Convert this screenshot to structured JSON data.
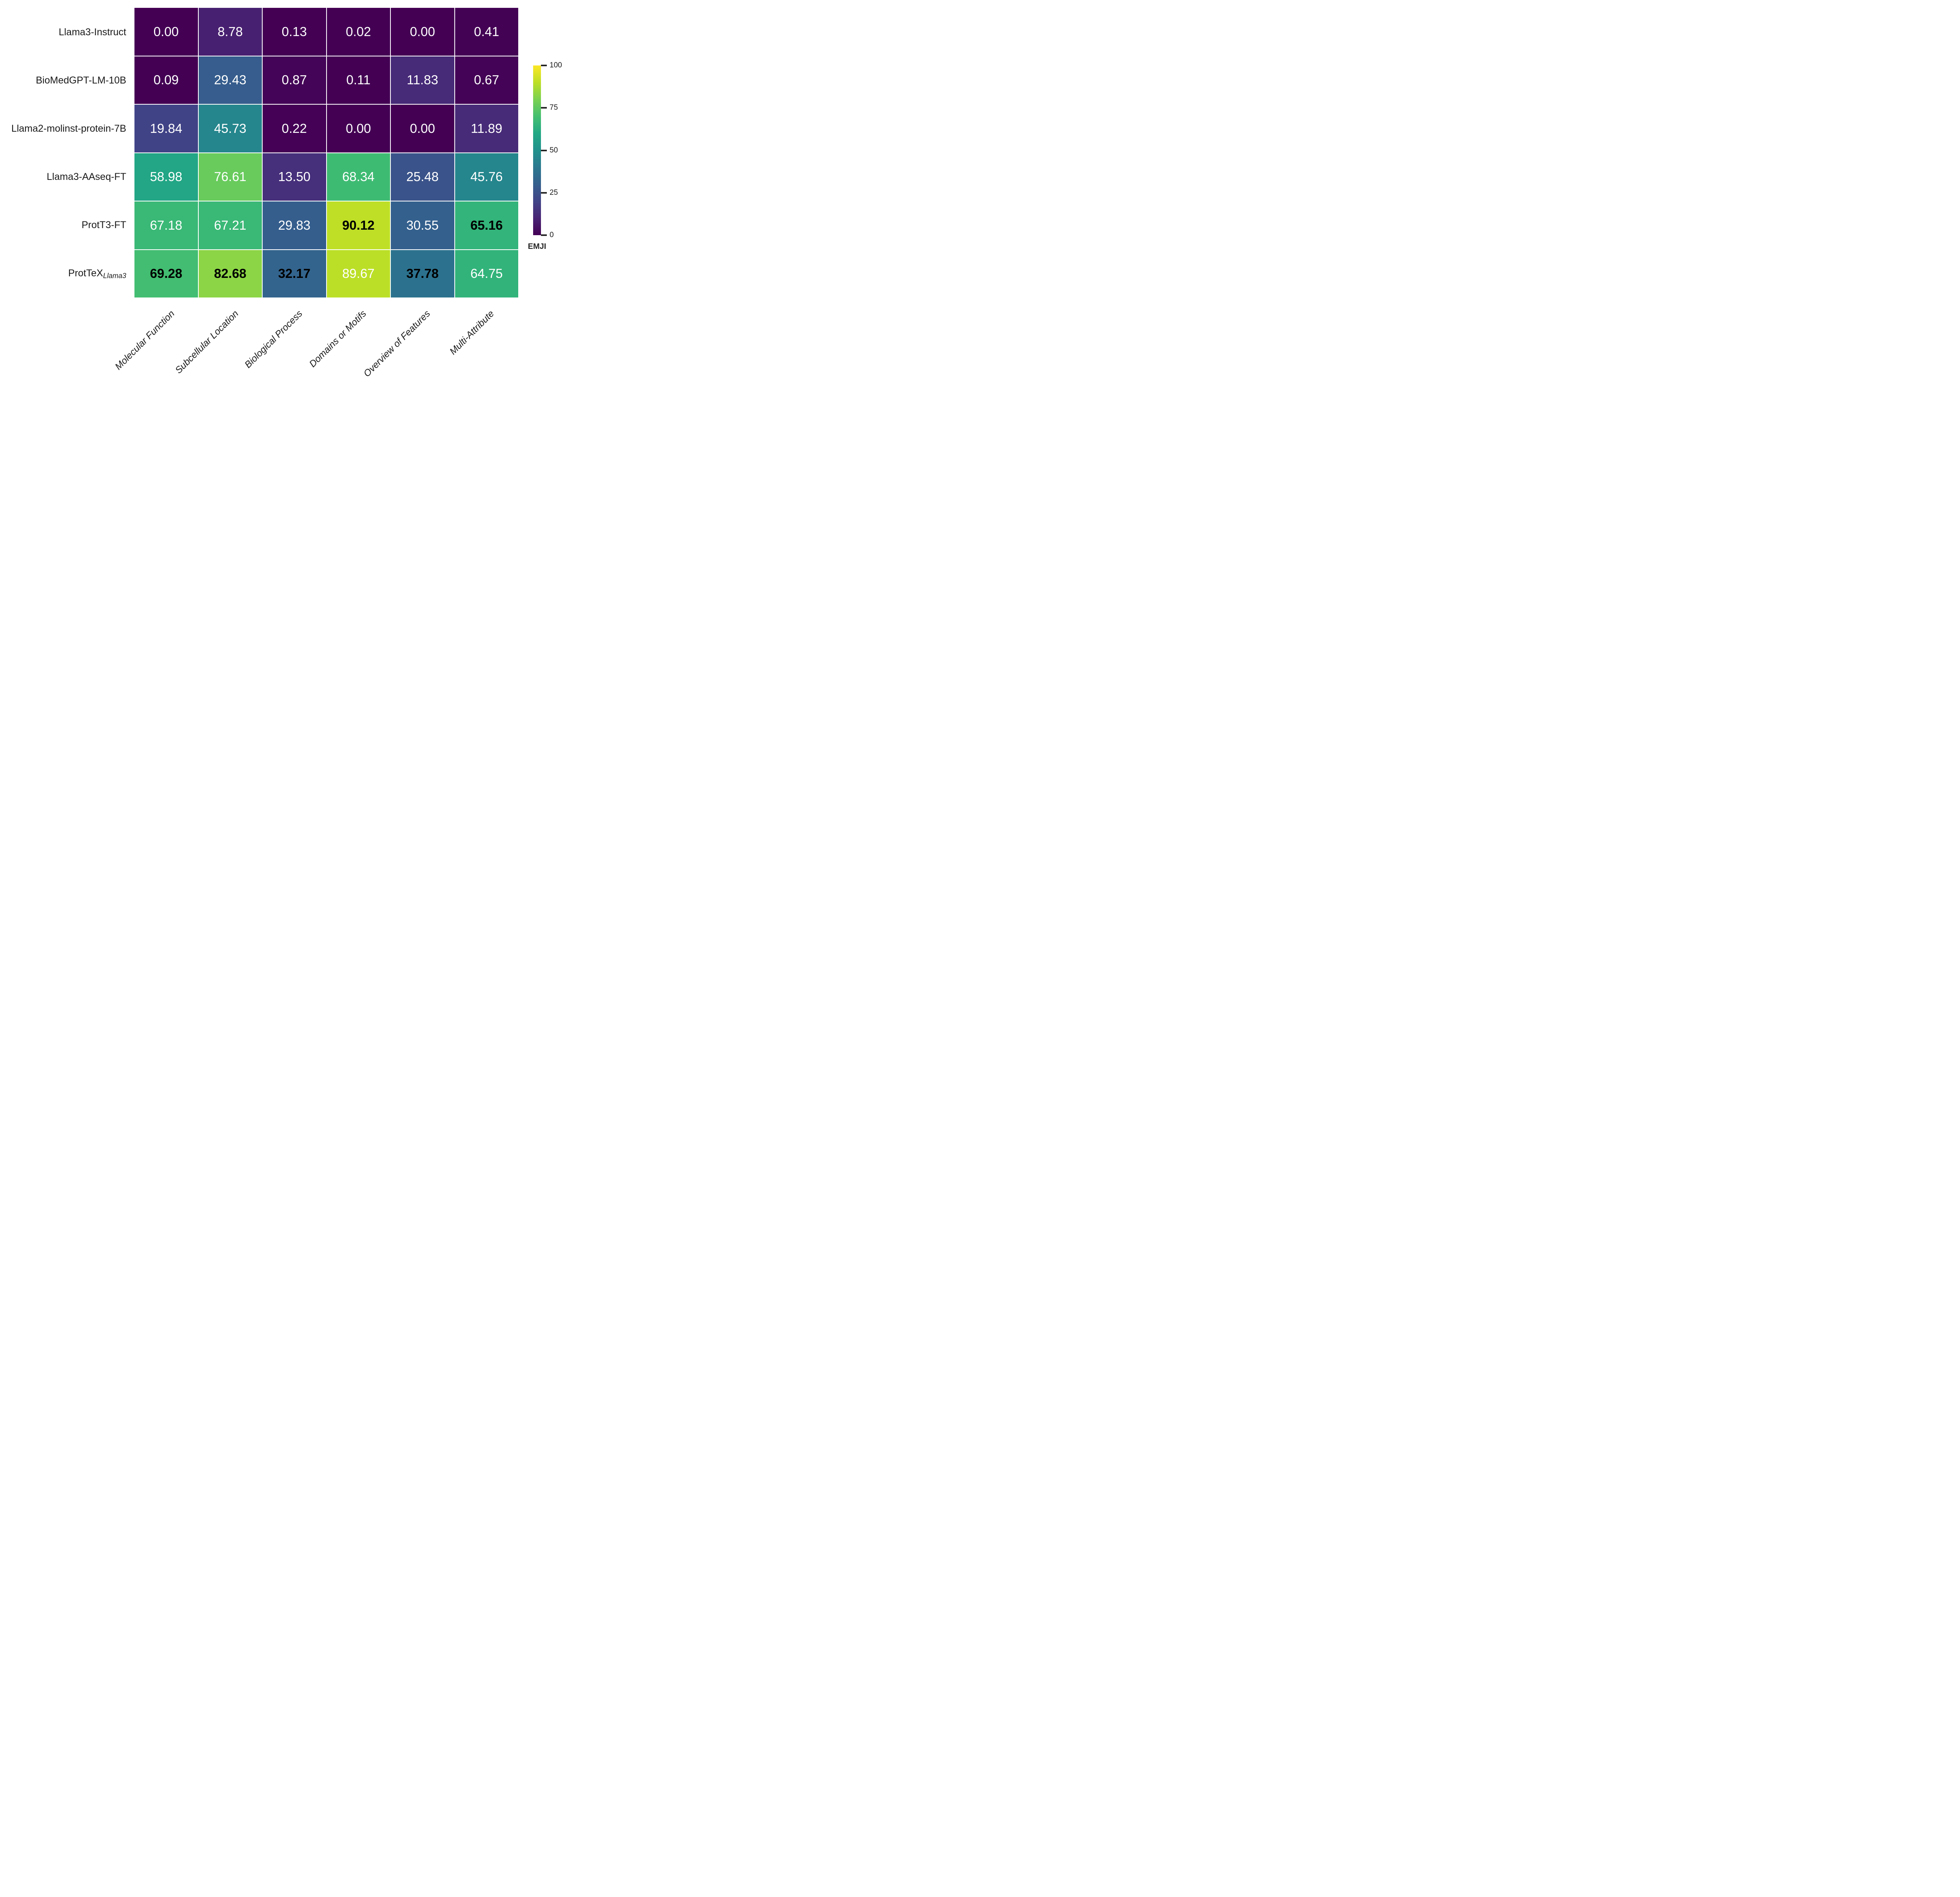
{
  "chart_data": {
    "type": "heatmap",
    "colormap": "viridis",
    "vmin": 0,
    "vmax": 100,
    "grid": "off",
    "legend_position": "right",
    "annotation_format": "%.2f",
    "categories": [
      "Molecular Function",
      "Subcellular Location",
      "Biological Process",
      "Domains or Motifs",
      "Overview of Features",
      "Multi-Attribute"
    ],
    "rows": [
      {
        "label": "Llama3-Instruct",
        "subscript": null
      },
      {
        "label": "BioMedGPT-LM-10B",
        "subscript": null
      },
      {
        "label": "Llama2-molinst-protein-7B",
        "subscript": null
      },
      {
        "label": "Llama3-AAseq-FT",
        "subscript": null
      },
      {
        "label": "ProtT3-FT",
        "subscript": null
      },
      {
        "label": "ProtTeX",
        "subscript": "Llama3"
      }
    ],
    "values": [
      [
        0.0,
        8.78,
        0.13,
        0.02,
        0.0,
        0.41
      ],
      [
        0.09,
        29.43,
        0.87,
        0.11,
        11.83,
        0.67
      ],
      [
        19.84,
        45.73,
        0.22,
        0.0,
        0.0,
        11.89
      ],
      [
        58.98,
        76.61,
        13.5,
        68.34,
        25.48,
        45.76
      ],
      [
        67.18,
        67.21,
        29.83,
        90.12,
        30.55,
        65.16
      ],
      [
        69.28,
        82.68,
        32.17,
        89.67,
        37.78,
        64.75
      ]
    ],
    "bold_column_max": [
      [
        false,
        false,
        false,
        false,
        false,
        false
      ],
      [
        false,
        false,
        false,
        false,
        false,
        false
      ],
      [
        false,
        false,
        false,
        false,
        false,
        false
      ],
      [
        false,
        false,
        false,
        false,
        false,
        false
      ],
      [
        false,
        false,
        false,
        true,
        false,
        true
      ],
      [
        true,
        true,
        true,
        false,
        true,
        false
      ]
    ],
    "cell_colors": [
      [
        "#440154",
        "#482071",
        "#440154",
        "#440154",
        "#440154",
        "#440255"
      ],
      [
        "#440154",
        "#365d8d",
        "#440457",
        "#440154",
        "#472a78",
        "#440356"
      ],
      [
        "#414387",
        "#25868d",
        "#440155",
        "#440154",
        "#440154",
        "#472b78"
      ],
      [
        "#22a685",
        "#68cb5c",
        "#462f7b",
        "#3ebb73",
        "#3a538a",
        "#25868d"
      ],
      [
        "#3ab876",
        "#3ab876",
        "#355e8d",
        "#bedf26",
        "#34608d",
        "#33b47a"
      ],
      [
        "#42bd71",
        "#8cd546",
        "#33648d",
        "#bbdf27",
        "#2c728e",
        "#32b37a"
      ]
    ],
    "colorbar": {
      "label": "EMJI",
      "ticks": [
        0,
        25,
        50,
        75,
        100
      ],
      "gradient_top_to_bottom": [
        "#fde725",
        "#bddf26",
        "#7ad151",
        "#44bf70",
        "#22a884",
        "#21918c",
        "#2a788e",
        "#355f8d",
        "#414487",
        "#482475",
        "#440154"
      ]
    }
  }
}
